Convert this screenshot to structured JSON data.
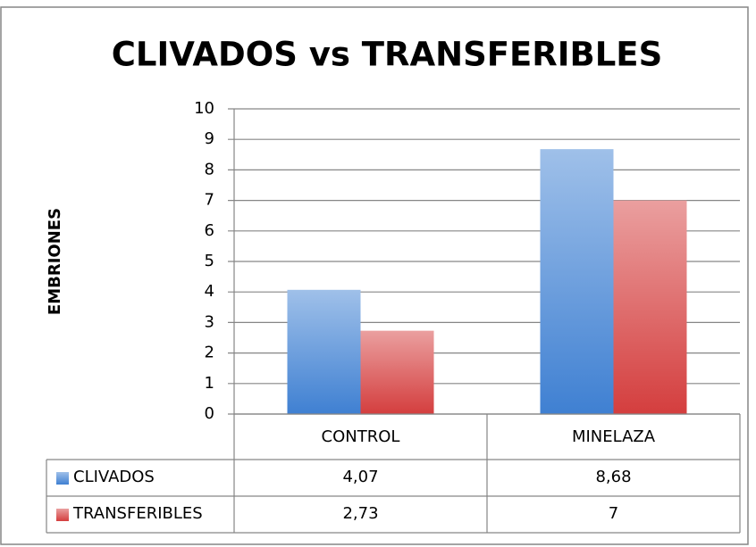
{
  "chart_data": {
    "type": "bar",
    "title": "CLIVADOS vs TRANSFERIBLES",
    "y_label": "EMBRIONES",
    "categories": [
      "CONTROL",
      "MINELAZA"
    ],
    "series": [
      {
        "name": "CLIVADOS",
        "color": "#3f80d2",
        "values": [
          4.07,
          8.68
        ],
        "value_labels": [
          "4,07",
          "8,68"
        ]
      },
      {
        "name": "TRANSFERIBLES",
        "color": "#d43e3e",
        "values": [
          2.73,
          7
        ],
        "value_labels": [
          "2,73",
          "7"
        ]
      }
    ],
    "ylim": [
      0,
      10
    ],
    "yticks": [
      0,
      1,
      2,
      3,
      4,
      5,
      6,
      7,
      8,
      9,
      10
    ],
    "grid": true,
    "data_table": true
  }
}
